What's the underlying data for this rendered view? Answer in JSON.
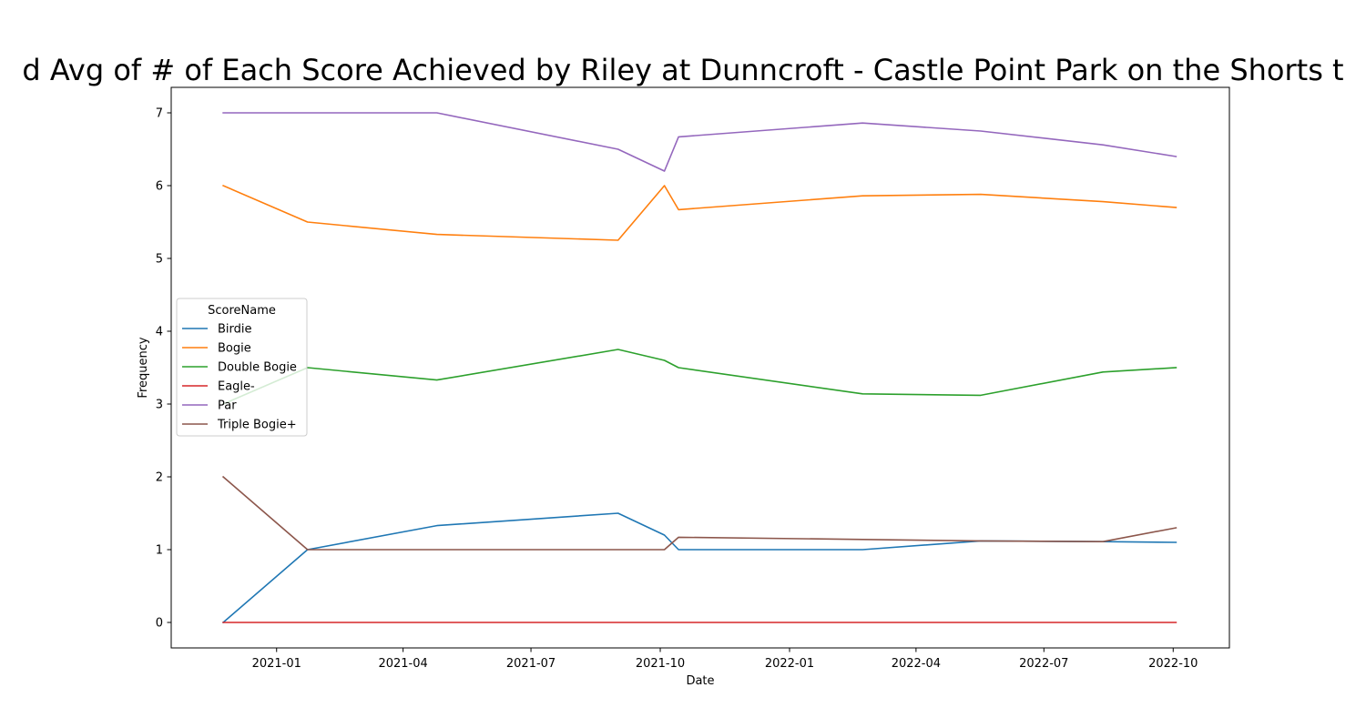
{
  "chart_data": {
    "type": "line",
    "title": "d Avg of # of Each Score Achieved by Riley at Dunncroft - Castle Point Park on the Shorts t",
    "xlabel": "Date",
    "ylabel": "Frequency",
    "x_type": "date",
    "xlim": [
      "2020-10-18",
      "2022-11-10"
    ],
    "ylim": [
      -0.35,
      7.35
    ],
    "x_ticks": [
      "2021-01-01",
      "2021-04-01",
      "2021-07-01",
      "2021-10-01",
      "2022-01-01",
      "2022-04-01",
      "2022-07-01",
      "2022-10-01"
    ],
    "x_tick_labels": [
      "2021-01",
      "2021-04",
      "2021-07",
      "2021-10",
      "2022-01",
      "2022-04",
      "2022-07",
      "2022-10"
    ],
    "y_ticks": [
      0,
      1,
      2,
      3,
      4,
      5,
      6,
      7
    ],
    "grid": false,
    "legend": {
      "title": "ScoreName",
      "position": "center-left"
    },
    "x": [
      "2020-11-24",
      "2021-01-23",
      "2021-04-25",
      "2021-09-01",
      "2021-10-04",
      "2021-10-14",
      "2022-02-22",
      "2022-05-17",
      "2022-08-12",
      "2022-10-03"
    ],
    "series": [
      {
        "name": "Birdie",
        "color": "#1f77b4",
        "values": [
          0,
          1,
          1.33,
          1.5,
          1.2,
          1,
          1,
          1.12,
          1.11,
          1.1
        ]
      },
      {
        "name": "Bogie",
        "color": "#ff7f0e",
        "values": [
          6,
          5.5,
          5.33,
          5.25,
          6,
          5.67,
          5.86,
          5.88,
          5.78,
          5.7
        ]
      },
      {
        "name": "Double Bogie",
        "color": "#2ca02c",
        "values": [
          3,
          3.5,
          3.33,
          3.75,
          3.6,
          3.5,
          3.14,
          3.12,
          3.44,
          3.5
        ]
      },
      {
        "name": "Eagle-",
        "color": "#d62728",
        "values": [
          0,
          0,
          0,
          0,
          0,
          0,
          0,
          0,
          0,
          0
        ]
      },
      {
        "name": "Par",
        "color": "#9467bd",
        "values": [
          7,
          7,
          7,
          6.5,
          6.2,
          6.67,
          6.86,
          6.75,
          6.56,
          6.4
        ]
      },
      {
        "name": "Triple Bogie+",
        "color": "#8c564b",
        "values": [
          2,
          1,
          1,
          1,
          1,
          1.17,
          1.14,
          1.12,
          1.11,
          1.3
        ]
      }
    ]
  }
}
